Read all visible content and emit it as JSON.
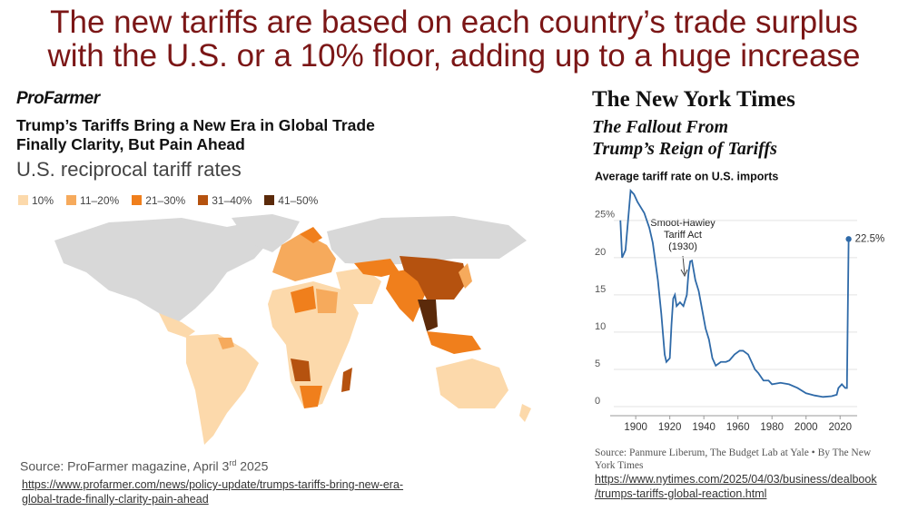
{
  "slide": {
    "title_lines": [
      "The new tariffs are based on each country’s trade surplus",
      "with the U.S. or a 10% floor, adding up to a huge increase"
    ]
  },
  "left": {
    "logo": "ProFarmer",
    "headline_lines": [
      "Trump’s Tariffs Bring a New Era in Global Trade",
      "Finally Clarity, But Pain Ahead"
    ],
    "map_title": "U.S. reciprocal tariff rates",
    "legend": [
      "10%",
      "11–20%",
      "21–30%",
      "31–40%",
      "41–50%"
    ],
    "source": {
      "prefix": "Source:  ProFarmer magazine, April 3",
      "sup": "rd",
      "suffix": " 2025"
    },
    "url_lines": [
      "https://www.profarmer.com/news/policy-update/trumps-tariffs-bring-new-era-",
      "global-trade-finally-clarity-pain-ahead"
    ]
  },
  "right": {
    "masthead": "The New York Times",
    "subtitle_lines": [
      "The Fallout From",
      "Trump’s Reign of Tariffs"
    ],
    "source": "Source: Panmure Liberum, The Budget Lab at Yale  •  By The New York Times",
    "url_lines": [
      "https://www.nytimes.com/2025/04/03/business/dealbook",
      "/trumps-tariffs-global-reaction.html"
    ]
  },
  "chart_data": {
    "type": "line",
    "title": "Average tariff rate on U.S. imports",
    "annotation_lines": [
      "Smoot-Hawley",
      "Tariff Act",
      "(1930)"
    ],
    "color": "#2f6aa8",
    "x": [
      1891,
      1892,
      1894,
      1897,
      1899,
      1901,
      1905,
      1908,
      1910,
      1913,
      1915,
      1917,
      1918,
      1920,
      1921,
      1922,
      1923,
      1924,
      1926,
      1928,
      1930,
      1931,
      1932,
      1933,
      1935,
      1937,
      1939,
      1941,
      1943,
      1945,
      1947,
      1950,
      1953,
      1955,
      1958,
      1961,
      1963,
      1966,
      1968,
      1970,
      1972,
      1975,
      1978,
      1980,
      1985,
      1990,
      1995,
      2000,
      2005,
      2010,
      2015,
      2018,
      2019,
      2021,
      2023,
      2024,
      2025
    ],
    "values": [
      25,
      20,
      21,
      29,
      28.5,
      27.5,
      26,
      24,
      22,
      17,
      12.5,
      7,
      6,
      6.5,
      11,
      14.5,
      15,
      13.5,
      14,
      13.5,
      15,
      18,
      19.5,
      19.6,
      17,
      15.5,
      13,
      10.5,
      9,
      6.5,
      5.5,
      6,
      6,
      6.2,
      7,
      7.5,
      7.5,
      7,
      6,
      5,
      4.5,
      3.5,
      3.5,
      3,
      3.2,
      3,
      2.5,
      1.8,
      1.5,
      1.3,
      1.4,
      1.6,
      2.5,
      3,
      2.5,
      2.5,
      22.5
    ],
    "value_labels": [
      null,
      null,
      null,
      null,
      null,
      null,
      null,
      null,
      null,
      null,
      null,
      null,
      null,
      null,
      null,
      null,
      null,
      null,
      null,
      null,
      null,
      null,
      null,
      null,
      null,
      null,
      null,
      null,
      null,
      null,
      null,
      null,
      null,
      null,
      null,
      null,
      null,
      null,
      null,
      null,
      null,
      null,
      null,
      null,
      null,
      null,
      null,
      null,
      null,
      null,
      null,
      null,
      null,
      null,
      null,
      null,
      "22.5%"
    ],
    "xlim": [
      1885,
      2030
    ],
    "xticks": [
      1900,
      1920,
      1940,
      1960,
      1980,
      2000,
      2020
    ],
    "ylim": [
      0,
      29
    ],
    "yticks": [
      0,
      5,
      10,
      15,
      20,
      {
        "value": 25,
        "label": "25%"
      }
    ],
    "grid": true
  }
}
